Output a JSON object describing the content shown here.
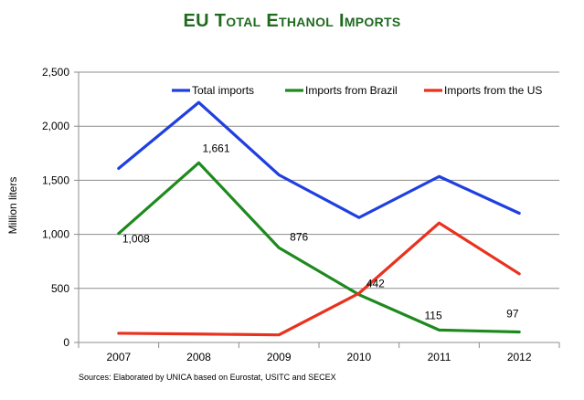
{
  "chart_data": {
    "type": "line",
    "title": "EU Total Ethanol Imports",
    "ylabel": "Million liters",
    "xlabel": "",
    "x": [
      "2007",
      "2008",
      "2009",
      "2010",
      "2011",
      "2012"
    ],
    "ylim": [
      0,
      2500
    ],
    "yticks": [
      0,
      500,
      1000,
      1500,
      2000,
      2500
    ],
    "ytick_labels": [
      "0",
      "500",
      "1,000",
      "1,500",
      "2,000",
      "2,500"
    ],
    "grid": "horizontal",
    "legend_position": "top",
    "series": [
      {
        "name": "Total imports",
        "color": "#1f3fe0",
        "values": [
          1610,
          2220,
          1550,
          1155,
          1535,
          1195
        ]
      },
      {
        "name": "Imports from Brazil",
        "color": "#1e8a1e",
        "values": [
          1008,
          1661,
          876,
          442,
          115,
          97
        ]
      },
      {
        "name": "Imports from the US",
        "color": "#e8321e",
        "values": [
          85,
          78,
          70,
          455,
          1105,
          635
        ]
      }
    ],
    "data_labels": [
      {
        "series": 1,
        "index": 0,
        "text": "1,008"
      },
      {
        "series": 1,
        "index": 1,
        "text": "1,661"
      },
      {
        "series": 1,
        "index": 2,
        "text": "876"
      },
      {
        "series": 1,
        "index": 3,
        "text": "442"
      },
      {
        "series": 1,
        "index": 4,
        "text": "115"
      },
      {
        "series": 1,
        "index": 5,
        "text": "97"
      }
    ]
  },
  "source_note": "Sources: Elaborated by UNICA based on Eurostat, USITC and SECEX"
}
